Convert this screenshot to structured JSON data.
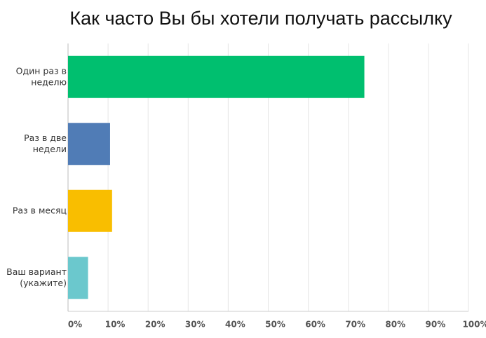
{
  "chart_data": {
    "type": "hbar",
    "title": "Как часто Вы бы хотели получать рассылку",
    "categories": [
      [
        "Один раз в",
        "неделю"
      ],
      [
        "Раз в две",
        "недели"
      ],
      [
        "Раз в месяц"
      ],
      [
        "Ваш вариант",
        "(укажите)"
      ]
    ],
    "values": [
      74,
      10.5,
      11,
      5
    ],
    "colors": [
      "#00bf6f",
      "#507cb6",
      "#f9be00",
      "#6bc8cd"
    ],
    "xlim": [
      0,
      100
    ],
    "xticks": [
      {
        "value": 0,
        "label": "0%"
      },
      {
        "value": 10,
        "label": "10%"
      },
      {
        "value": 20,
        "label": "20%"
      },
      {
        "value": 30,
        "label": "30%"
      },
      {
        "value": 40,
        "label": "40%"
      },
      {
        "value": 50,
        "label": "50%"
      },
      {
        "value": 60,
        "label": "60%"
      },
      {
        "value": 70,
        "label": "70%"
      },
      {
        "value": 80,
        "label": "80%"
      },
      {
        "value": 90,
        "label": "90%"
      },
      {
        "value": 100,
        "label": "100%"
      }
    ],
    "grid": true
  }
}
